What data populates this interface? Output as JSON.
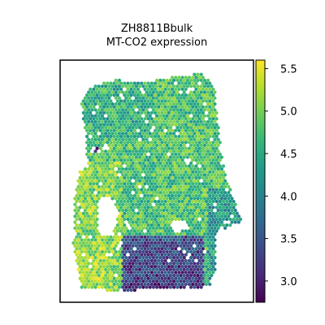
{
  "chart_data": {
    "type": "scatter",
    "title_line1": "ZH8811Bbulk",
    "title_line2": "MT-CO2 expression",
    "xlabel": "",
    "ylabel": "",
    "grid": false,
    "colormap": "viridis",
    "colorbar": {
      "range": [
        2.75,
        5.6
      ],
      "ticks": [
        3.0,
        3.5,
        4.0,
        4.5,
        5.0,
        5.5
      ],
      "tick_labels": [
        "3.0",
        "3.5",
        "4.0",
        "4.5",
        "5.0",
        "5.5"
      ]
    },
    "regions": {
      "bg_value": 4.75,
      "top_lobe": 4.55,
      "left_arm": 5.05,
      "bottom_left": 5.15,
      "bottom_dark": 3.45,
      "right_edge": 4.3,
      "dark_speck": 3.1
    },
    "colors": {
      "viridis_stops": [
        "#440154",
        "#482878",
        "#3e4989",
        "#31688e",
        "#26828e",
        "#1f9e89",
        "#35b779",
        "#6ece58",
        "#b5de2b",
        "#fde725"
      ],
      "frame": "#000000"
    }
  }
}
